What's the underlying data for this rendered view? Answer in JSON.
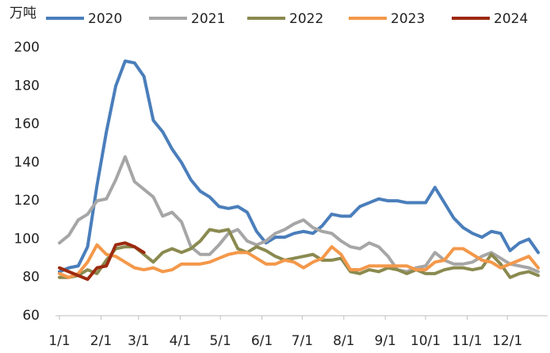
{
  "chart_data": {
    "type": "line",
    "y_label": "万吨",
    "x": [
      0,
      1,
      2,
      3,
      4,
      5,
      6,
      7,
      8,
      9,
      10,
      11,
      12,
      13,
      14,
      15,
      16,
      17,
      18,
      19,
      20,
      21,
      22,
      23,
      24,
      25,
      26,
      27,
      28,
      29,
      30,
      31,
      32,
      33,
      34,
      35,
      36,
      37,
      38,
      39,
      40,
      41,
      42,
      43,
      44,
      45,
      46,
      47,
      48,
      49,
      50,
      51
    ],
    "xlim": [
      0,
      52
    ],
    "xticks": [
      {
        "value": 0,
        "label": "1/1"
      },
      {
        "value": 4.43,
        "label": "2/1"
      },
      {
        "value": 8.43,
        "label": "3/1"
      },
      {
        "value": 12.86,
        "label": "4/1"
      },
      {
        "value": 17.14,
        "label": "5/1"
      },
      {
        "value": 21.57,
        "label": "6/1"
      },
      {
        "value": 25.86,
        "label": "7/1"
      },
      {
        "value": 30.29,
        "label": "8/1"
      },
      {
        "value": 34.71,
        "label": "9/1"
      },
      {
        "value": 39,
        "label": "10/1"
      },
      {
        "value": 43.43,
        "label": "11/1"
      },
      {
        "value": 47.71,
        "label": "12/1"
      }
    ],
    "ylim": [
      60,
      200
    ],
    "yticks": [
      60,
      80,
      100,
      120,
      140,
      160,
      180,
      200
    ],
    "grid": false,
    "series": [
      {
        "name": "2020",
        "color": "#4a7ebb",
        "values": [
          83,
          85,
          86,
          96,
          128,
          156,
          180,
          193,
          192,
          185,
          162,
          156,
          147,
          140,
          131,
          125,
          122,
          117,
          116,
          117,
          114,
          104,
          98,
          101,
          101,
          103,
          104,
          103,
          107,
          113,
          112,
          112,
          117,
          119,
          121,
          120,
          120,
          119,
          119,
          119,
          127,
          119,
          111,
          106,
          103,
          101,
          104,
          103,
          94,
          98,
          100,
          93
        ]
      },
      {
        "name": "2021",
        "color": "#a6a6a6",
        "values": [
          98,
          102,
          110,
          113,
          120,
          121,
          131,
          143,
          130,
          126,
          122,
          112,
          114,
          109,
          96,
          92,
          92,
          97,
          103,
          105,
          99,
          97,
          99,
          103,
          105,
          108,
          110,
          106,
          104,
          103,
          99,
          96,
          95,
          98,
          96,
          91,
          84,
          83,
          85,
          86,
          93,
          89,
          87,
          87,
          88,
          91,
          93,
          90,
          87,
          86,
          85,
          83
        ]
      },
      {
        "name": "2022",
        "color": "#8a8a50",
        "values": [
          80,
          80,
          81,
          84,
          82,
          89,
          95,
          96,
          96,
          92,
          88,
          93,
          95,
          93,
          95,
          99,
          105,
          104,
          105,
          95,
          93,
          96,
          94,
          91,
          89,
          90,
          91,
          92,
          89,
          89,
          90,
          83,
          82,
          84,
          83,
          85,
          84,
          82,
          84,
          82,
          82,
          84,
          85,
          85,
          84,
          85,
          92,
          87,
          80,
          82,
          83,
          81
        ]
      },
      {
        "name": "2023",
        "color": "#f4984a",
        "values": [
          82,
          80,
          82,
          88,
          97,
          92,
          91,
          88,
          85,
          84,
          85,
          83,
          84,
          87,
          87,
          87,
          88,
          90,
          92,
          93,
          93,
          90,
          87,
          87,
          89,
          88,
          85,
          88,
          90,
          96,
          92,
          84,
          84,
          86,
          86,
          86,
          86,
          86,
          84,
          84,
          88,
          89,
          95,
          95,
          92,
          89,
          88,
          85,
          87,
          89,
          91,
          85
        ]
      },
      {
        "name": "2024",
        "color": "#9c2a0f",
        "values": [
          85,
          83,
          81,
          79,
          85,
          86,
          97,
          98,
          96,
          93,
          null,
          null,
          null,
          null,
          null,
          null,
          null,
          null,
          null,
          null,
          null,
          null,
          null,
          null,
          null,
          null,
          null,
          null,
          null,
          null,
          null,
          null,
          null,
          null,
          null,
          null,
          null,
          null,
          null,
          null,
          null,
          null,
          null,
          null,
          null,
          null,
          null,
          null,
          null,
          null,
          null,
          null
        ]
      }
    ]
  }
}
